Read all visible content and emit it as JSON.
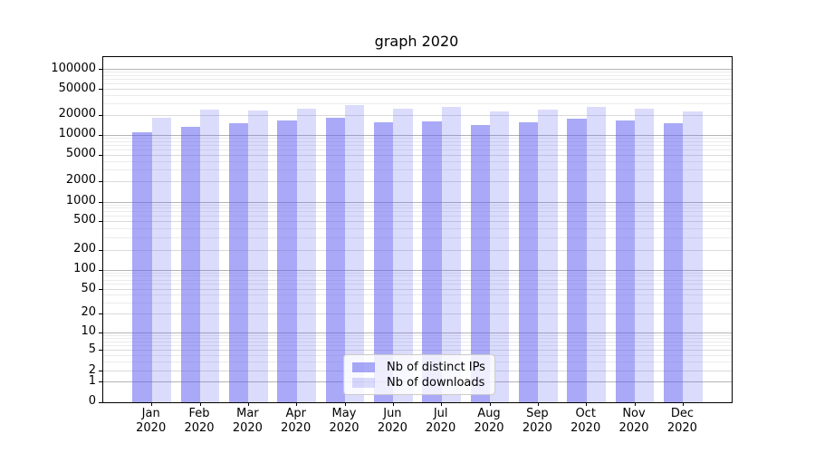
{
  "chart_data": {
    "type": "bar",
    "title": "graph 2020",
    "categories": [
      "Jan",
      "Feb",
      "Mar",
      "Apr",
      "May",
      "Jun",
      "Jul",
      "Aug",
      "Sep",
      "Oct",
      "Nov",
      "Dec"
    ],
    "x_year_label": "2020",
    "series": [
      {
        "name": "Nb of distinct IPs",
        "color": "rgba(92,92,240,0.53)",
        "swatch_hex": "#a8a8f2",
        "values": [
          11000,
          13200,
          15100,
          16500,
          18000,
          15800,
          16200,
          14300,
          15500,
          17700,
          16800,
          15100
        ]
      },
      {
        "name": "Nb of downloads",
        "color": "rgba(92,92,240,0.22)",
        "swatch_hex": "#dcdcf8",
        "values": [
          18500,
          24000,
          23500,
          25500,
          28500,
          25000,
          26500,
          22500,
          24000,
          26500,
          25500,
          23000
        ]
      }
    ],
    "y_scale": "symlog",
    "y_ticks": [
      0,
      1,
      2,
      5,
      10,
      20,
      50,
      100,
      200,
      500,
      1000,
      2000,
      5000,
      10000,
      20000,
      50000,
      100000
    ],
    "ylim": [
      0,
      152000
    ],
    "grid": "both",
    "legend_position": "lower center",
    "colors": {
      "grid_decade": "#b4b4b4",
      "grid_labeled": "#dadada",
      "grid_minor": "#ebebeb",
      "axis": "#000000",
      "background": "#ffffff"
    }
  }
}
